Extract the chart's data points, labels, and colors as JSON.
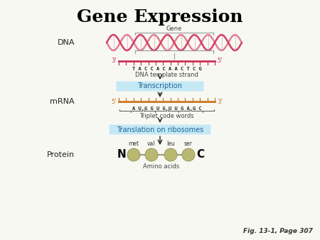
{
  "title": "Gene Expression",
  "title_fontsize": 18,
  "title_fontweight": "bold",
  "fig_caption": "Fig. 13-1, Page 307",
  "background_color": "#f8f8f3",
  "dna_label": "DNA",
  "mrna_label": "mRNA",
  "protein_label": "Protein",
  "gene_label": "Gene",
  "dna_template_label": "DNA template strand",
  "dna_sequence": "TACCACAACTCG",
  "mrna_sequence": "AUGGUGUUGAGC",
  "triplet_label": "Triplet code words",
  "transcription_label": "Transcription",
  "translation_label": "Translation on ribosomes",
  "amino_acids_label": "Amino acids",
  "amino_acid_names": [
    "met",
    "val",
    "leu",
    "ser"
  ],
  "n_label": "N",
  "c_label": "C",
  "dna_color": "#d44060",
  "mrna_color": "#cc7722",
  "transcription_box_color": "#c5e8f5",
  "translation_box_color": "#c5e8f5",
  "amino_acid_color": "#b8b870",
  "arrow_color": "#222222",
  "label_color": "#222222",
  "sequence_color": "#222222",
  "strand_3_5_color": "#cc3355",
  "gene_box_color": "#cccccc",
  "triplet_bracket_color": "#555555"
}
